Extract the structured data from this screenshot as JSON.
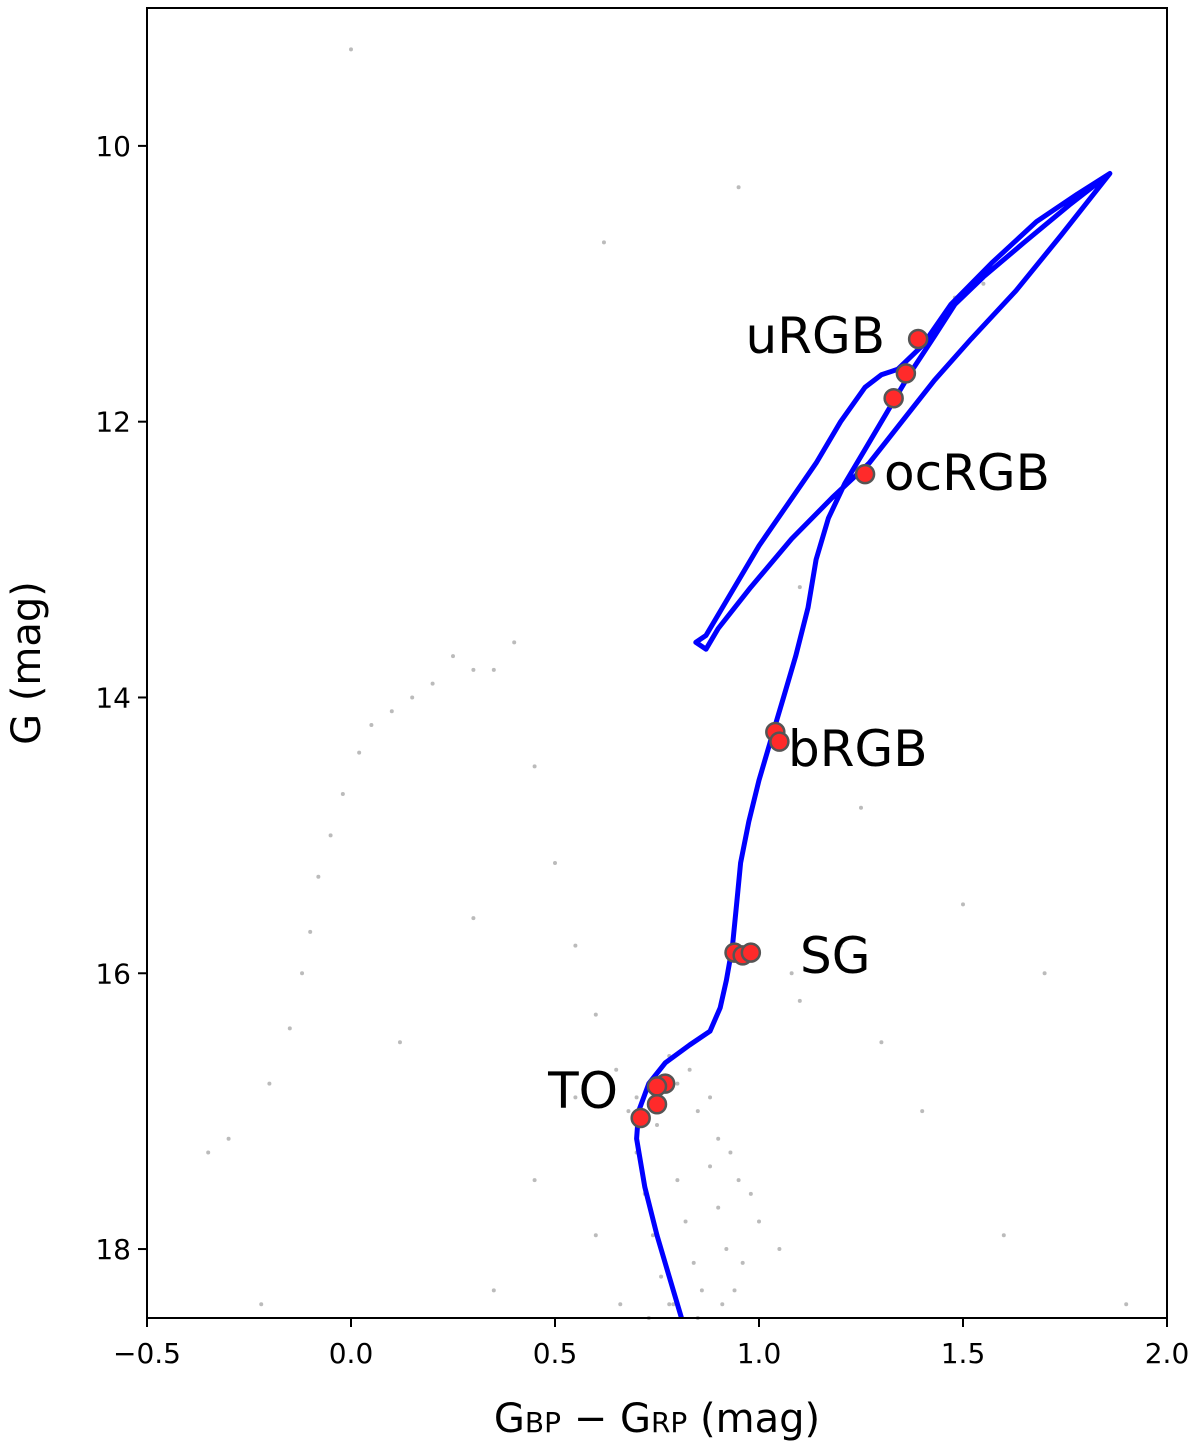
{
  "chart_data": {
    "type": "scatter",
    "xlabel": [
      "G",
      "BP",
      " − ",
      "G",
      "RP",
      " (mag)"
    ],
    "ylabel": "G (mag)",
    "xlim": [
      -0.5,
      2.0
    ],
    "xticks": [
      {
        "value": -0.5,
        "label": "−0.5"
      },
      {
        "value": 0.0,
        "label": "0.0"
      },
      {
        "value": 0.5,
        "label": "0.5"
      },
      {
        "value": 1.0,
        "label": "1.0"
      },
      {
        "value": 1.5,
        "label": "1.5"
      },
      {
        "value": 2.0,
        "label": "2.0"
      }
    ],
    "ylim": [
      9.0,
      18.5
    ],
    "yticks": [
      10,
      12,
      14,
      16,
      18
    ],
    "invert_y": true,
    "field_stars": {
      "color": "#aaaaaa",
      "x": [
        0.0,
        0.62,
        0.95,
        1.48,
        1.55,
        1.2,
        0.4,
        0.3,
        0.2,
        0.1,
        0.05,
        0.02,
        -0.02,
        -0.05,
        -0.08,
        -0.1,
        -0.12,
        -0.15,
        -0.2,
        -0.3,
        -0.35,
        0.15,
        0.25,
        0.35,
        0.45,
        0.5,
        0.55,
        0.6,
        0.65,
        0.68,
        0.7,
        0.72,
        0.74,
        0.76,
        0.78,
        0.8,
        0.82,
        0.84,
        0.86,
        0.88,
        0.9,
        0.92,
        0.94,
        0.96,
        0.7,
        0.75,
        0.8,
        0.85,
        0.9,
        0.95,
        1.0,
        1.05,
        0.78,
        0.83,
        0.88,
        0.93,
        0.98,
        1.1,
        1.2,
        1.3,
        1.5,
        1.7,
        1.9,
        1.1,
        1.25,
        1.4,
        1.6,
        0.55,
        0.45,
        0.35,
        0.6,
        0.66,
        0.73,
        0.79,
        0.85,
        0.91,
        1.08,
        0.3,
        -0.22,
        0.12
      ],
      "y": [
        9.3,
        10.7,
        10.3,
        11.1,
        11.0,
        12.0,
        13.6,
        13.8,
        13.9,
        14.1,
        14.2,
        14.4,
        14.7,
        15.0,
        15.3,
        15.7,
        16.0,
        16.4,
        16.8,
        17.2,
        17.3,
        14.0,
        13.7,
        13.8,
        14.5,
        15.2,
        15.8,
        16.3,
        16.7,
        17.0,
        17.3,
        17.6,
        17.9,
        18.2,
        18.4,
        17.5,
        17.8,
        18.1,
        18.3,
        17.4,
        17.7,
        18.0,
        18.3,
        18.1,
        16.9,
        17.1,
        16.8,
        17.0,
        17.2,
        17.5,
        17.8,
        18.0,
        16.6,
        16.7,
        16.9,
        17.3,
        17.6,
        16.2,
        15.8,
        16.5,
        15.5,
        16.0,
        18.4,
        13.2,
        14.8,
        17.0,
        17.9,
        16.9,
        17.5,
        18.3,
        17.9,
        18.4,
        18.5,
        18.4,
        18.5,
        18.4,
        16.0,
        15.6,
        18.4,
        16.5
      ]
    },
    "isochrone": {
      "color": "#0000ff",
      "x": [
        0.81,
        0.78,
        0.75,
        0.72,
        0.7,
        0.705,
        0.73,
        0.77,
        0.83,
        0.88,
        0.905,
        0.92,
        0.935,
        0.945,
        0.955,
        0.975,
        1.0,
        1.03,
        1.06,
        1.09,
        1.12,
        1.14,
        1.17,
        1.21,
        1.26,
        1.31,
        1.37,
        1.43,
        1.48,
        1.55,
        1.65,
        1.76,
        1.86,
        1.78,
        1.68,
        1.57,
        1.47,
        1.4,
        1.34,
        1.3,
        1.26,
        1.2,
        1.14,
        1.07,
        1.0,
        0.93,
        0.87,
        0.845,
        0.87,
        0.9,
        0.98,
        1.08,
        1.18,
        1.27,
        1.35,
        1.43,
        1.52,
        1.63,
        1.74,
        1.86
      ],
      "y": [
        18.5,
        18.2,
        17.9,
        17.55,
        17.2,
        17.0,
        16.8,
        16.65,
        16.52,
        16.42,
        16.25,
        16.05,
        15.8,
        15.5,
        15.2,
        14.9,
        14.6,
        14.3,
        14.0,
        13.7,
        13.35,
        13.0,
        12.7,
        12.45,
        12.2,
        11.95,
        11.65,
        11.38,
        11.15,
        10.95,
        10.7,
        10.43,
        10.2,
        10.35,
        10.55,
        10.85,
        11.15,
        11.45,
        11.62,
        11.66,
        11.75,
        12.0,
        12.3,
        12.6,
        12.9,
        13.25,
        13.55,
        13.6,
        13.65,
        13.5,
        13.2,
        12.85,
        12.55,
        12.3,
        12.0,
        11.7,
        11.4,
        11.05,
        10.65,
        10.2
      ]
    },
    "stars": {
      "color": "#ff2a2a",
      "x": [
        1.39,
        1.36,
        1.33,
        1.26,
        1.04,
        1.05,
        0.94,
        0.96,
        0.98,
        0.77,
        0.75,
        0.75,
        0.71
      ],
      "y": [
        11.4,
        11.65,
        11.83,
        12.38,
        14.25,
        14.32,
        15.85,
        15.87,
        15.85,
        16.8,
        16.82,
        16.95,
        17.05
      ]
    },
    "annotations": [
      "uRGB",
      "ocRGB",
      "bRGB",
      "SG",
      "TO"
    ]
  }
}
